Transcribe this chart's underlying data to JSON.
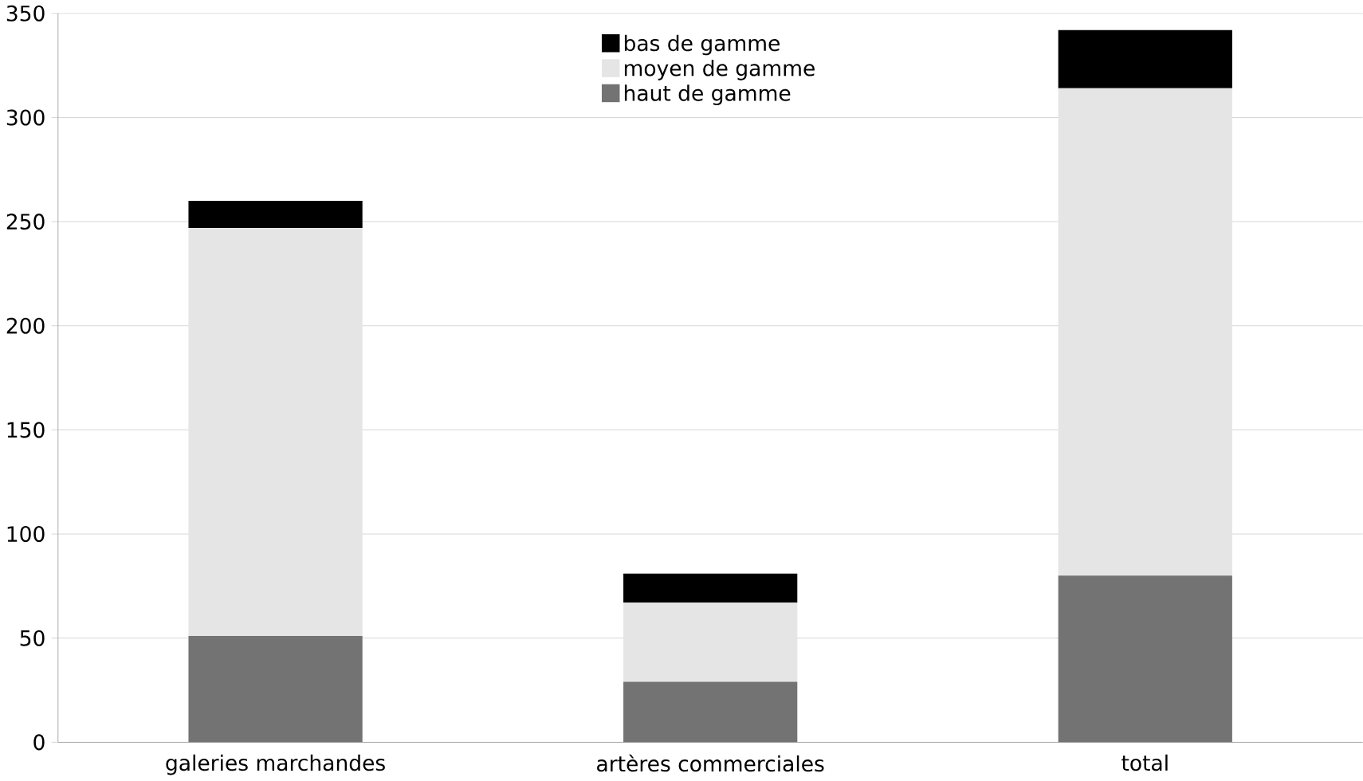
{
  "chart_data": {
    "type": "bar",
    "stacked": true,
    "categories": [
      "galeries marchandes",
      "artères commerciales",
      "total"
    ],
    "series": [
      {
        "name": "haut de gamme",
        "color": "#737373",
        "values": [
          51,
          29,
          80
        ]
      },
      {
        "name": "moyen de gamme",
        "color": "#e5e5e5",
        "values": [
          196,
          38,
          234
        ]
      },
      {
        "name": "bas de gamme",
        "color": "#000000",
        "values": [
          13,
          14,
          28
        ]
      }
    ],
    "ylim": [
      0,
      350
    ],
    "yticks": [
      0,
      50,
      100,
      150,
      200,
      250,
      300,
      350
    ],
    "grid": "y",
    "legend": "top"
  }
}
